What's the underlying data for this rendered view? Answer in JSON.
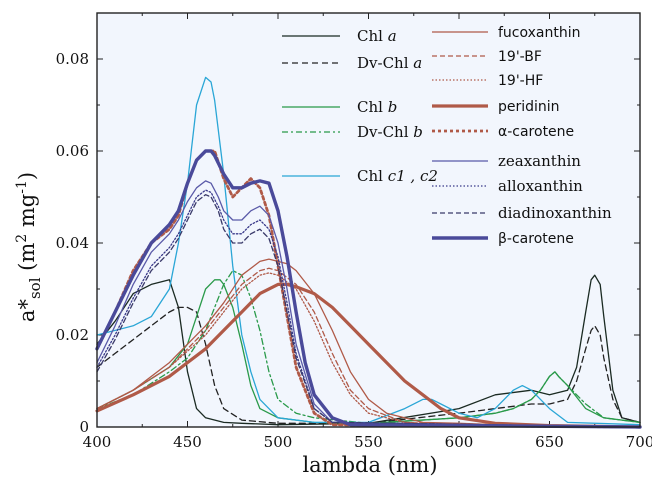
{
  "chart_data": {
    "type": "line",
    "xlabel": "lambda (nm)",
    "ylabel_parts": [
      "a*",
      "sol",
      " (m",
      "2",
      " mg",
      "-1",
      ")"
    ],
    "xlim": [
      400,
      700
    ],
    "ylim": [
      0,
      0.09
    ],
    "x_ticks": [
      400,
      450,
      500,
      550,
      600,
      650,
      700
    ],
    "y_ticks": [
      0,
      0.02,
      0.04,
      0.06,
      0.08
    ],
    "y_tick_labels": [
      "0",
      "0.02",
      "0.04",
      "0.06",
      "0.08"
    ],
    "background": "#f2f6fd",
    "series": [
      {
        "name": "Chl a",
        "color": "#1a2a22",
        "width": 1.3,
        "dash": "",
        "x": [
          400,
          410,
          420,
          430,
          440,
          445,
          450,
          455,
          460,
          470,
          480,
          500,
          550,
          600,
          620,
          640,
          650,
          660,
          665,
          670,
          673,
          675,
          678,
          680,
          685,
          690,
          700
        ],
        "y": [
          0.018,
          0.023,
          0.029,
          0.031,
          0.032,
          0.026,
          0.012,
          0.004,
          0.002,
          0.001,
          0.0008,
          0.0005,
          0.0008,
          0.004,
          0.007,
          0.008,
          0.007,
          0.008,
          0.013,
          0.025,
          0.032,
          0.033,
          0.031,
          0.024,
          0.008,
          0.002,
          0.001
        ]
      },
      {
        "name": "Dv-Chl a",
        "color": "#222222",
        "width": 1.3,
        "dash": "6,4",
        "x": [
          400,
          410,
          420,
          430,
          440,
          445,
          450,
          455,
          460,
          465,
          470,
          480,
          500,
          550,
          600,
          620,
          640,
          650,
          660,
          665,
          670,
          673,
          675,
          678,
          680,
          685,
          690,
          700
        ],
        "y": [
          0.013,
          0.016,
          0.019,
          0.022,
          0.025,
          0.026,
          0.026,
          0.025,
          0.018,
          0.009,
          0.004,
          0.0015,
          0.0008,
          0.0008,
          0.003,
          0.004,
          0.005,
          0.005,
          0.006,
          0.01,
          0.017,
          0.021,
          0.022,
          0.02,
          0.015,
          0.006,
          0.002,
          0.001
        ]
      },
      {
        "name": "Chl b",
        "color": "#2a9a4a",
        "width": 1.3,
        "dash": "",
        "x": [
          400,
          420,
          440,
          450,
          455,
          460,
          465,
          468,
          470,
          475,
          480,
          485,
          490,
          500,
          520,
          550,
          600,
          620,
          630,
          640,
          645,
          650,
          653,
          655,
          660,
          670,
          680,
          700
        ],
        "y": [
          0.004,
          0.008,
          0.013,
          0.018,
          0.024,
          0.03,
          0.032,
          0.032,
          0.031,
          0.026,
          0.018,
          0.009,
          0.004,
          0.002,
          0.001,
          0.0008,
          0.002,
          0.003,
          0.004,
          0.006,
          0.008,
          0.011,
          0.012,
          0.011,
          0.009,
          0.004,
          0.002,
          0.001
        ]
      },
      {
        "name": "Dv-Chl b",
        "color": "#2a9a4a",
        "width": 1.3,
        "dash": "6,3,2,3",
        "x": [
          400,
          420,
          440,
          450,
          460,
          465,
          470,
          475,
          480,
          485,
          490,
          495,
          500,
          510,
          520,
          550,
          600,
          620,
          630,
          640,
          645,
          650,
          653,
          655,
          660,
          670,
          680,
          700
        ],
        "y": [
          0.004,
          0.007,
          0.012,
          0.015,
          0.021,
          0.026,
          0.031,
          0.034,
          0.033,
          0.028,
          0.021,
          0.012,
          0.006,
          0.003,
          0.002,
          0.0008,
          0.002,
          0.003,
          0.004,
          0.006,
          0.008,
          0.011,
          0.012,
          0.011,
          0.009,
          0.005,
          0.002,
          0.001
        ]
      },
      {
        "name": "Chl c1, c2",
        "color": "#2aa6d6",
        "width": 1.3,
        "dash": "",
        "x": [
          400,
          410,
          420,
          430,
          440,
          445,
          450,
          455,
          460,
          463,
          465,
          470,
          475,
          480,
          485,
          490,
          500,
          520,
          550,
          570,
          580,
          585,
          590,
          600,
          610,
          620,
          630,
          635,
          640,
          650,
          660,
          700
        ],
        "y": [
          0.02,
          0.021,
          0.022,
          0.024,
          0.03,
          0.04,
          0.053,
          0.07,
          0.076,
          0.075,
          0.071,
          0.055,
          0.035,
          0.02,
          0.012,
          0.006,
          0.002,
          0.001,
          0.001,
          0.004,
          0.006,
          0.006,
          0.005,
          0.003,
          0.002,
          0.004,
          0.008,
          0.009,
          0.008,
          0.004,
          0.001,
          0.0005
        ]
      },
      {
        "name": "fucoxanthin",
        "color": "#b05a48",
        "width": 1.3,
        "dash": "",
        "x": [
          400,
          420,
          440,
          460,
          470,
          480,
          490,
          495,
          500,
          505,
          510,
          520,
          530,
          540,
          550,
          560,
          580,
          600,
          620,
          650,
          700
        ],
        "y": [
          0.004,
          0.008,
          0.014,
          0.022,
          0.027,
          0.033,
          0.036,
          0.0365,
          0.036,
          0.0355,
          0.034,
          0.029,
          0.021,
          0.012,
          0.006,
          0.003,
          0.001,
          0.0008,
          0.0005,
          0.0003,
          0
        ],
        "nolegendcolor": false
      },
      {
        "name": "19'-BF",
        "color": "#b05a48",
        "width": 1.3,
        "dash": "5,3",
        "x": [
          400,
          420,
          440,
          460,
          470,
          480,
          490,
          495,
          500,
          510,
          520,
          530,
          540,
          550,
          570,
          600,
          700
        ],
        "y": [
          0.004,
          0.008,
          0.013,
          0.021,
          0.026,
          0.031,
          0.034,
          0.0345,
          0.034,
          0.031,
          0.025,
          0.016,
          0.008,
          0.004,
          0.001,
          0.0005,
          0
        ]
      },
      {
        "name": "19'-HF",
        "color": "#b05a48",
        "width": 1.3,
        "dash": "1.5,2",
        "x": [
          400,
          420,
          440,
          460,
          470,
          480,
          490,
          495,
          500,
          510,
          520,
          530,
          540,
          550,
          570,
          600,
          700
        ],
        "y": [
          0.004,
          0.008,
          0.013,
          0.02,
          0.025,
          0.03,
          0.033,
          0.0335,
          0.033,
          0.03,
          0.023,
          0.014,
          0.007,
          0.003,
          0.001,
          0.0005,
          0
        ]
      },
      {
        "name": "peridinin",
        "color": "#b05a48",
        "width": 3.2,
        "dash": "",
        "x": [
          400,
          420,
          440,
          460,
          470,
          480,
          490,
          500,
          505,
          510,
          520,
          530,
          540,
          550,
          560,
          570,
          580,
          590,
          600,
          620,
          650,
          700
        ],
        "y": [
          0.0035,
          0.007,
          0.011,
          0.017,
          0.021,
          0.025,
          0.029,
          0.031,
          0.031,
          0.0305,
          0.029,
          0.026,
          0.022,
          0.018,
          0.014,
          0.01,
          0.007,
          0.004,
          0.002,
          0.0008,
          0.0003,
          0
        ]
      },
      {
        "name": "α-carotene",
        "color": "#b05a48",
        "width": 2.8,
        "dash": "3,3",
        "x": [
          400,
          410,
          420,
          430,
          440,
          445,
          450,
          455,
          460,
          465,
          470,
          475,
          480,
          485,
          490,
          495,
          500,
          510,
          520,
          530,
          700
        ],
        "y": [
          0.017,
          0.025,
          0.034,
          0.04,
          0.043,
          0.046,
          0.053,
          0.058,
          0.06,
          0.06,
          0.054,
          0.05,
          0.052,
          0.054,
          0.052,
          0.046,
          0.035,
          0.013,
          0.003,
          0.0005,
          0
        ]
      },
      {
        "name": "zeaxanthin",
        "color": "#5a5aa8",
        "width": 1.3,
        "dash": "",
        "x": [
          400,
          410,
          420,
          430,
          440,
          445,
          450,
          455,
          460,
          463,
          467,
          470,
          475,
          480,
          485,
          490,
          495,
          500,
          505,
          510,
          520,
          530,
          700
        ],
        "y": [
          0.014,
          0.022,
          0.031,
          0.038,
          0.042,
          0.045,
          0.049,
          0.052,
          0.0535,
          0.053,
          0.05,
          0.047,
          0.045,
          0.045,
          0.047,
          0.048,
          0.046,
          0.04,
          0.03,
          0.018,
          0.005,
          0.001,
          0
        ]
      },
      {
        "name": "alloxanthin",
        "color": "#3a3a8a",
        "width": 1.3,
        "dash": "1.5,2",
        "x": [
          400,
          410,
          420,
          430,
          440,
          445,
          450,
          455,
          460,
          463,
          467,
          470,
          475,
          480,
          485,
          490,
          495,
          500,
          505,
          510,
          520,
          530,
          700
        ],
        "y": [
          0.013,
          0.02,
          0.028,
          0.035,
          0.039,
          0.042,
          0.046,
          0.05,
          0.0515,
          0.051,
          0.048,
          0.045,
          0.042,
          0.042,
          0.044,
          0.045,
          0.043,
          0.037,
          0.027,
          0.016,
          0.004,
          0.001,
          0
        ]
      },
      {
        "name": "diadinoxanthin",
        "color": "#3a3a6a",
        "width": 1.3,
        "dash": "5,3",
        "x": [
          400,
          410,
          420,
          430,
          440,
          445,
          450,
          455,
          460,
          463,
          467,
          470,
          475,
          480,
          485,
          490,
          495,
          500,
          505,
          510,
          520,
          530,
          700
        ],
        "y": [
          0.012,
          0.019,
          0.027,
          0.034,
          0.038,
          0.041,
          0.045,
          0.049,
          0.0505,
          0.05,
          0.047,
          0.043,
          0.04,
          0.04,
          0.042,
          0.043,
          0.041,
          0.035,
          0.025,
          0.015,
          0.004,
          0.001,
          0
        ]
      },
      {
        "name": "β-carotene",
        "color": "#4a4a9a",
        "width": 3.4,
        "dash": "",
        "x": [
          400,
          410,
          420,
          430,
          440,
          445,
          450,
          455,
          460,
          463,
          465,
          470,
          475,
          480,
          485,
          490,
          495,
          500,
          505,
          510,
          515,
          520,
          530,
          540,
          700
        ],
        "y": [
          0.017,
          0.025,
          0.033,
          0.04,
          0.044,
          0.047,
          0.053,
          0.058,
          0.06,
          0.06,
          0.059,
          0.055,
          0.052,
          0.052,
          0.053,
          0.0535,
          0.053,
          0.047,
          0.037,
          0.025,
          0.014,
          0.007,
          0.002,
          0.0005,
          0
        ]
      }
    ],
    "legend": [
      {
        "label": "Chl ",
        "italic": "a",
        "style": "serif",
        "series": 0
      },
      {
        "label": "Dv-Chl ",
        "italic": "a",
        "style": "serif",
        "series": 1
      },
      {
        "label": "Chl ",
        "italic": "b",
        "style": "serif",
        "series": 2
      },
      {
        "label": "Dv-Chl ",
        "italic": "b",
        "style": "serif",
        "series": 3
      },
      {
        "label": "Chl ",
        "italic": "c1 , c2",
        "style": "serif",
        "series": 4
      },
      {
        "label": "fucoxanthin",
        "italic": "",
        "style": "sans",
        "series": 5
      },
      {
        "label": "19'-BF",
        "italic": "",
        "style": "sans",
        "series": 6
      },
      {
        "label": "19'-HF",
        "italic": "",
        "style": "sans",
        "series": 7
      },
      {
        "label": "peridinin",
        "italic": "",
        "style": "sans",
        "series": 8
      },
      {
        "label": "α-carotene",
        "italic": "",
        "style": "sans",
        "series": 9
      },
      {
        "label": "zeaxanthin",
        "italic": "",
        "style": "serif",
        "series": 10
      },
      {
        "label": "alloxanthin",
        "italic": "",
        "style": "serif",
        "series": 11
      },
      {
        "label": "diadinoxanthin",
        "italic": "",
        "style": "serif",
        "series": 12
      },
      {
        "label": "β-carotene",
        "italic": "",
        "style": "sans",
        "series": 13
      }
    ]
  }
}
